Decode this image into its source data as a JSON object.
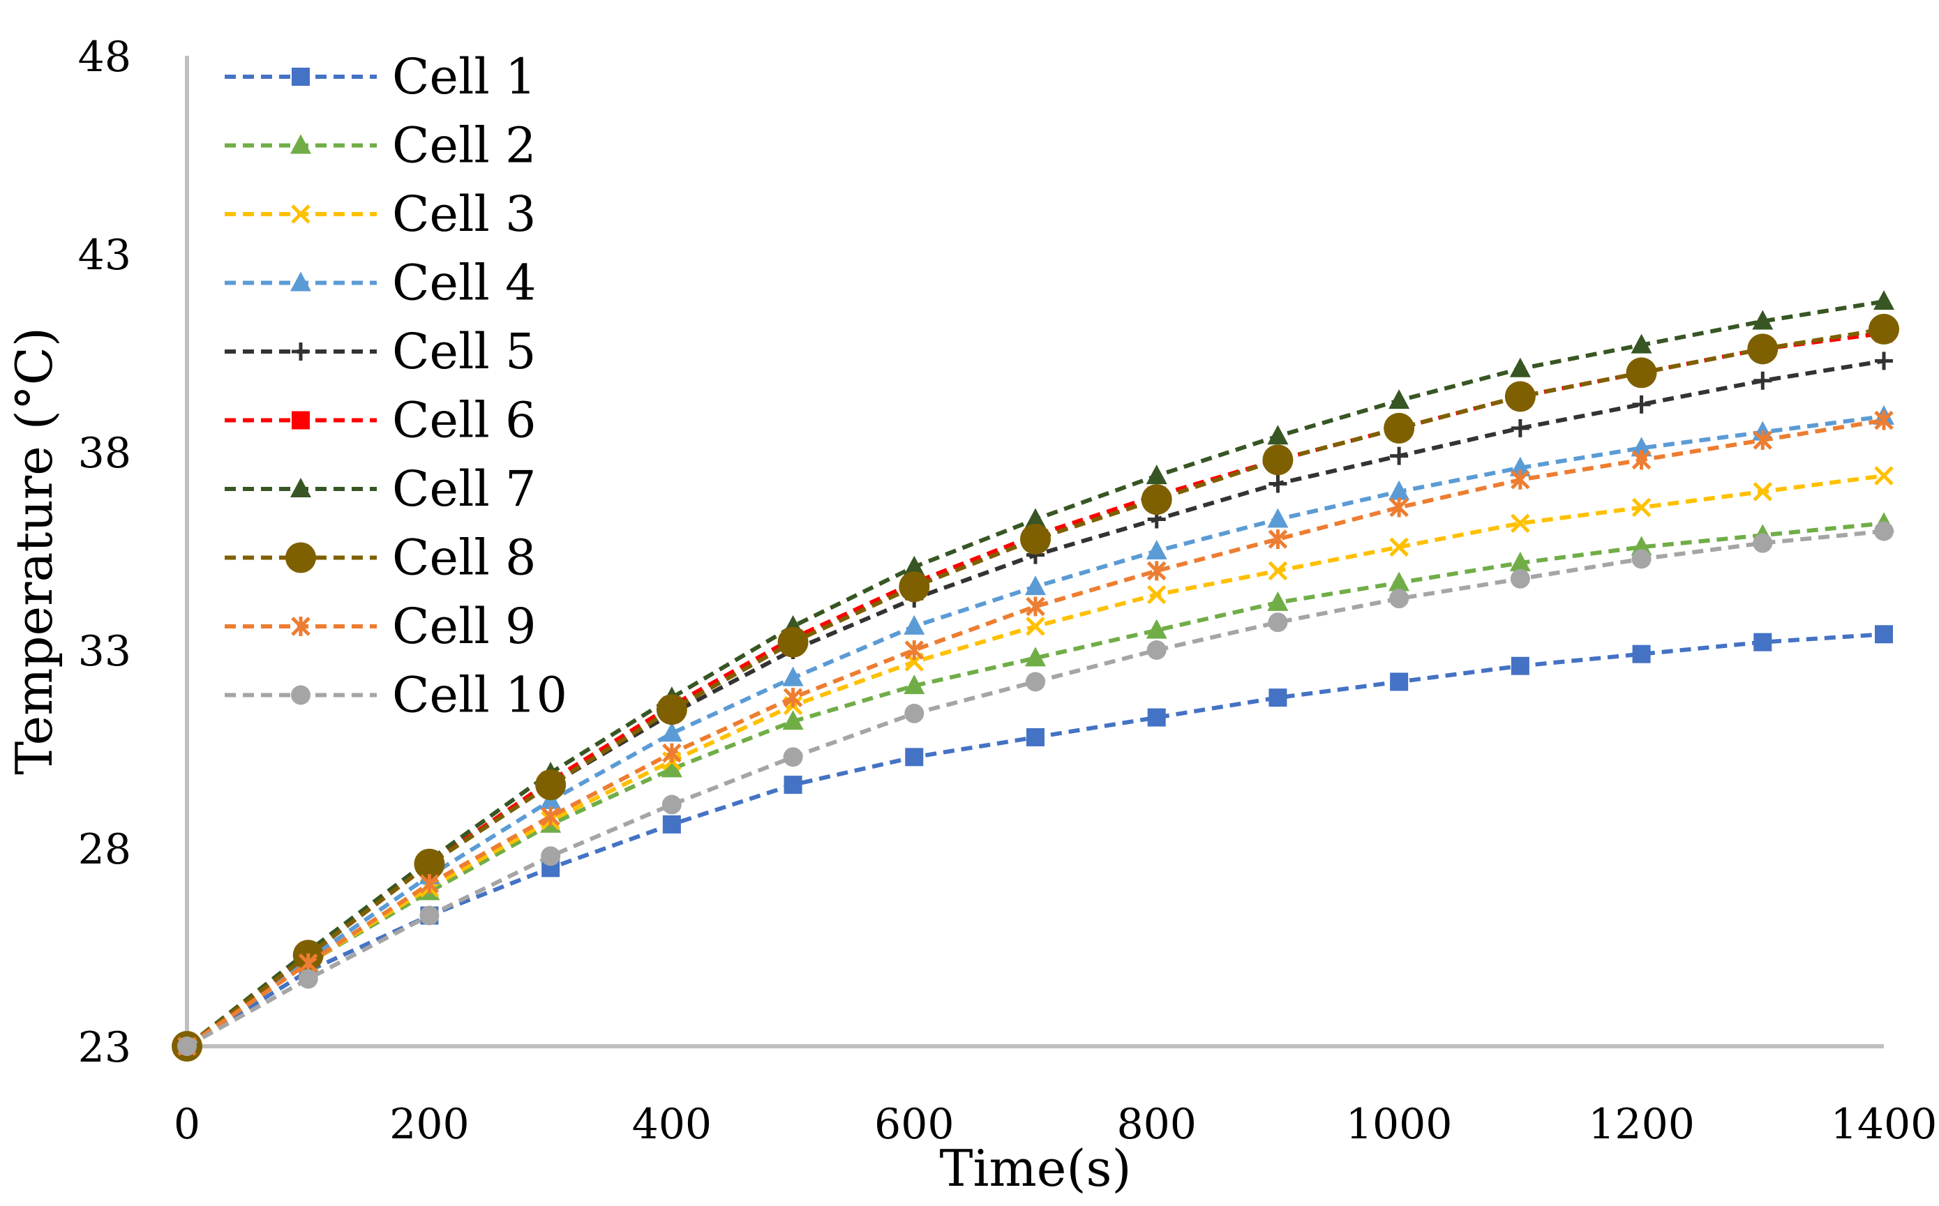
{
  "chart_data": {
    "type": "line",
    "title": "",
    "xlabel": "Time(s)",
    "ylabel": "Temperature (°C)",
    "xlim": [
      0,
      1400
    ],
    "ylim": [
      23,
      48
    ],
    "xticks": [
      0,
      200,
      400,
      600,
      800,
      1000,
      1200,
      1400
    ],
    "yticks": [
      23,
      28,
      33,
      38,
      43,
      48
    ],
    "grid": false,
    "legend_position": "top-left",
    "x": [
      0,
      100,
      200,
      300,
      400,
      500,
      600,
      700,
      800,
      900,
      1000,
      1100,
      1200,
      1300,
      1400
    ],
    "series": [
      {
        "name": "Cell 1",
        "color": "#4472C4",
        "marker": "square",
        "values": [
          23,
          24.9,
          26.3,
          27.5,
          28.6,
          29.6,
          30.3,
          30.8,
          31.3,
          31.8,
          32.2,
          32.6,
          32.9,
          33.2,
          33.4
        ]
      },
      {
        "name": "Cell 2",
        "color": "#70AD47",
        "marker": "triangle",
        "values": [
          23,
          25.1,
          26.9,
          28.6,
          30.0,
          31.2,
          32.1,
          32.8,
          33.5,
          34.2,
          34.7,
          35.2,
          35.6,
          35.9,
          36.2
        ]
      },
      {
        "name": "Cell 3",
        "color": "#FFC000",
        "marker": "x",
        "values": [
          23,
          25.1,
          27.0,
          28.7,
          30.2,
          31.6,
          32.7,
          33.6,
          34.4,
          35.0,
          35.6,
          36.2,
          36.6,
          37.0,
          37.4
        ]
      },
      {
        "name": "Cell 4",
        "color": "#5B9BD5",
        "marker": "triangle",
        "values": [
          23,
          25.2,
          27.3,
          29.2,
          30.9,
          32.3,
          33.6,
          34.6,
          35.5,
          36.3,
          37.0,
          37.6,
          38.1,
          38.5,
          38.9
        ]
      },
      {
        "name": "Cell 5",
        "color": "#333333",
        "marker": "plus",
        "values": [
          23,
          25.3,
          27.6,
          29.6,
          31.4,
          33.0,
          34.3,
          35.4,
          36.3,
          37.2,
          37.9,
          38.6,
          39.2,
          39.8,
          40.3
        ]
      },
      {
        "name": "Cell 6",
        "color": "#FF0000",
        "marker": "square",
        "values": [
          23,
          25.3,
          27.6,
          29.7,
          31.6,
          33.3,
          34.7,
          35.9,
          36.9,
          37.8,
          38.6,
          39.4,
          40.0,
          40.6,
          41.0
        ]
      },
      {
        "name": "Cell 7",
        "color": "#375623",
        "marker": "triangle",
        "values": [
          23,
          25.4,
          27.7,
          29.9,
          31.8,
          33.6,
          35.1,
          36.3,
          37.4,
          38.4,
          39.3,
          40.1,
          40.7,
          41.3,
          41.8
        ]
      },
      {
        "name": "Cell 8",
        "color": "#7F6000",
        "marker": "circle-large",
        "values": [
          23,
          25.3,
          27.6,
          29.6,
          31.5,
          33.2,
          34.6,
          35.8,
          36.8,
          37.8,
          38.6,
          39.4,
          40.0,
          40.6,
          41.1
        ]
      },
      {
        "name": "Cell 9",
        "color": "#ED7D31",
        "marker": "asterisk",
        "values": [
          23,
          25.1,
          27.1,
          28.8,
          30.4,
          31.8,
          33.0,
          34.1,
          35.0,
          35.8,
          36.6,
          37.3,
          37.8,
          38.3,
          38.8
        ]
      },
      {
        "name": "Cell 10",
        "color": "#A5A5A5",
        "marker": "circle",
        "values": [
          23,
          24.7,
          26.3,
          27.8,
          29.1,
          30.3,
          31.4,
          32.2,
          33.0,
          33.7,
          34.3,
          34.8,
          35.3,
          35.7,
          36.0
        ]
      }
    ]
  }
}
